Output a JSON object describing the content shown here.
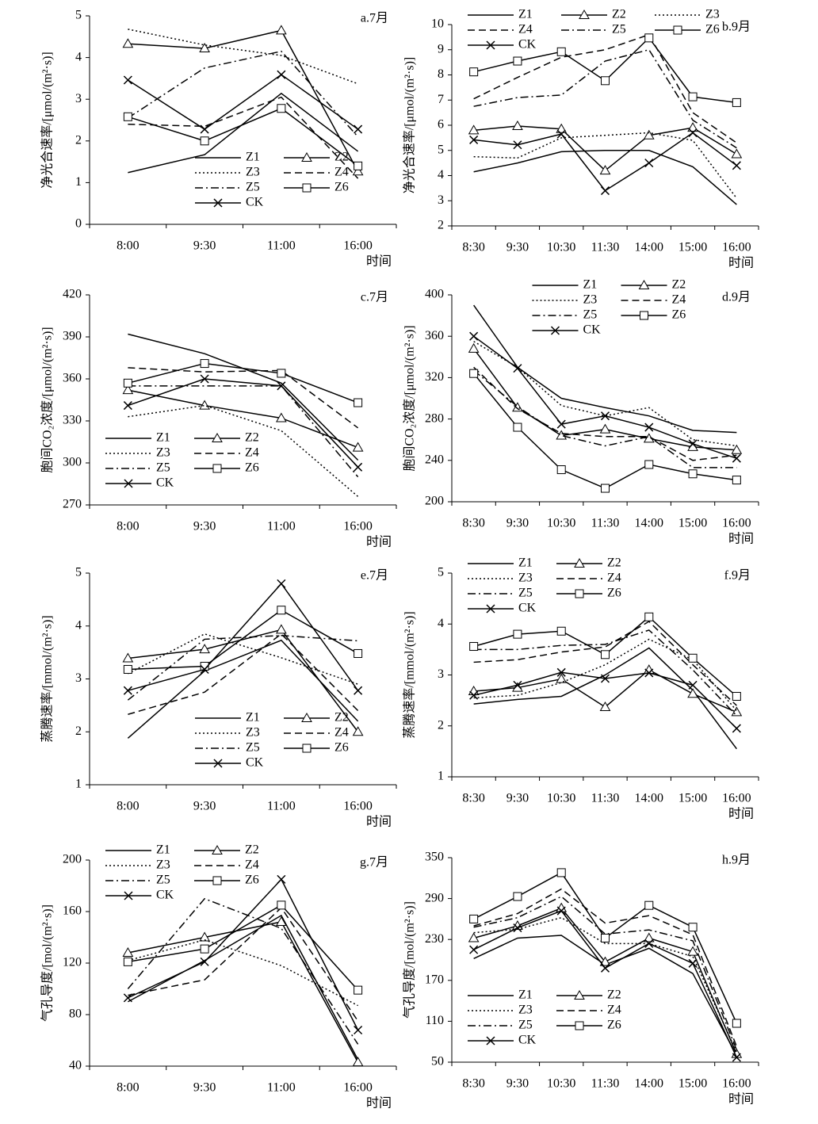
{
  "chart_data": [
    {
      "type": "line",
      "title": "a.7月",
      "ylabel": "净光合速率/[μmol/(m²·s)]",
      "xlabel": "时间",
      "categories": [
        "8:00",
        "9:30",
        "11:00",
        "16:00"
      ],
      "ylim": [
        0,
        5
      ],
      "yticks": [
        0,
        1,
        2,
        3,
        4,
        5
      ],
      "legend": "lower right",
      "legend_columns": 2,
      "series": [
        {
          "name": "Z1",
          "color": "#000",
          "dash": "solid",
          "marker": "none",
          "values": [
            1.24,
            1.67,
            3.14,
            1.75
          ]
        },
        {
          "name": "Z2",
          "color": "#000",
          "dash": "solid",
          "marker": "triangle",
          "values": [
            4.33,
            4.22,
            4.65,
            1.27
          ]
        },
        {
          "name": "Z3",
          "color": "#000",
          "dash": "dotted",
          "marker": "none",
          "values": [
            4.68,
            4.3,
            4.05,
            3.37
          ]
        },
        {
          "name": "Z4",
          "color": "#000",
          "dash": "dashed",
          "marker": "none",
          "values": [
            2.4,
            2.35,
            3.05,
            1.1
          ]
        },
        {
          "name": "Z5",
          "color": "#000",
          "dash": "dashdot",
          "marker": "none",
          "values": [
            2.55,
            3.75,
            4.15,
            2.1
          ]
        },
        {
          "name": "Z6",
          "color": "#000",
          "dash": "solid",
          "marker": "square",
          "values": [
            2.58,
            2.0,
            2.78,
            1.4
          ]
        },
        {
          "name": "CK",
          "color": "#000",
          "dash": "solid",
          "marker": "x",
          "values": [
            3.46,
            2.28,
            3.59,
            2.28
          ]
        }
      ]
    },
    {
      "type": "line",
      "title": "b.9月",
      "ylabel": "净光合速率/[μmol/(m²·s)]",
      "xlabel": "时间",
      "categories": [
        "8:30",
        "9:30",
        "10:30",
        "11:30",
        "14:00",
        "15:00",
        "16:00"
      ],
      "ylim": [
        2,
        10
      ],
      "yticks": [
        2,
        3,
        4,
        5,
        6,
        7,
        8,
        9,
        10
      ],
      "legend": "upper left",
      "legend_columns": 3,
      "series": [
        {
          "name": "Z1",
          "color": "#000",
          "dash": "solid",
          "marker": "none",
          "values": [
            4.15,
            4.5,
            4.95,
            5.0,
            5.0,
            4.35,
            2.85
          ]
        },
        {
          "name": "Z2",
          "color": "#000",
          "dash": "solid",
          "marker": "triangle",
          "values": [
            5.8,
            5.97,
            5.85,
            4.2,
            5.6,
            5.9,
            4.85
          ]
        },
        {
          "name": "Z3",
          "color": "#000",
          "dash": "dotted",
          "marker": "none",
          "values": [
            4.75,
            4.7,
            5.5,
            5.6,
            5.7,
            5.4,
            3.1
          ]
        },
        {
          "name": "Z4",
          "color": "#000",
          "dash": "dashed",
          "marker": "none",
          "values": [
            7.05,
            7.9,
            8.7,
            9.0,
            9.6,
            6.5,
            5.3
          ]
        },
        {
          "name": "Z5",
          "color": "#000",
          "dash": "dashdot",
          "marker": "none",
          "values": [
            6.75,
            7.1,
            7.2,
            8.55,
            9.0,
            6.2,
            5.1
          ]
        },
        {
          "name": "Z6",
          "color": "#000",
          "dash": "solid",
          "marker": "square",
          "values": [
            8.12,
            8.55,
            8.92,
            7.77,
            9.47,
            7.13,
            6.9
          ]
        },
        {
          "name": "CK",
          "color": "#000",
          "dash": "solid",
          "marker": "x",
          "values": [
            5.42,
            5.22,
            5.65,
            3.4,
            4.5,
            5.7,
            4.4
          ]
        }
      ]
    },
    {
      "type": "line",
      "title": "c.7月",
      "ylabel": "胞间CO₂浓度/[μmol/(m²·s)]",
      "xlabel": "时间",
      "categories": [
        "8:00",
        "9:30",
        "11:00",
        "16:00"
      ],
      "ylim": [
        270,
        420
      ],
      "yticks": [
        270,
        300,
        330,
        360,
        390,
        420
      ],
      "legend": "lower left",
      "legend_columns": 2,
      "series": [
        {
          "name": "Z1",
          "color": "#000",
          "dash": "solid",
          "marker": "none",
          "values": [
            392,
            378,
            357,
            302
          ]
        },
        {
          "name": "Z2",
          "color": "#000",
          "dash": "solid",
          "marker": "triangle",
          "values": [
            352,
            341,
            332,
            311
          ]
        },
        {
          "name": "Z3",
          "color": "#000",
          "dash": "dotted",
          "marker": "none",
          "values": [
            333,
            341,
            323,
            276
          ]
        },
        {
          "name": "Z4",
          "color": "#000",
          "dash": "dashed",
          "marker": "none",
          "values": [
            368,
            365,
            366,
            325
          ]
        },
        {
          "name": "Z5",
          "color": "#000",
          "dash": "dashdot",
          "marker": "none",
          "values": [
            355,
            355,
            355,
            290
          ]
        },
        {
          "name": "Z6",
          "color": "#000",
          "dash": "solid",
          "marker": "square",
          "values": [
            357,
            371,
            364,
            343
          ]
        },
        {
          "name": "CK",
          "color": "#000",
          "dash": "solid",
          "marker": "x",
          "values": [
            341,
            360,
            355,
            297
          ]
        }
      ]
    },
    {
      "type": "line",
      "title": "d.9月",
      "ylabel": "胞间CO₂浓度/[μmol/(m²·s)]",
      "xlabel": "时间",
      "categories": [
        "8:30",
        "9:30",
        "10:30",
        "11:30",
        "14:00",
        "15:00",
        "16:00"
      ],
      "ylim": [
        200,
        400
      ],
      "yticks": [
        200,
        240,
        280,
        320,
        360,
        400
      ],
      "legend": "upper center",
      "legend_columns": 2,
      "series": [
        {
          "name": "Z1",
          "color": "#000",
          "dash": "solid",
          "marker": "none",
          "values": [
            390,
            330,
            300,
            291,
            283,
            269,
            267
          ]
        },
        {
          "name": "Z2",
          "color": "#000",
          "dash": "solid",
          "marker": "triangle",
          "values": [
            348,
            291,
            264,
            270,
            261,
            253,
            250
          ]
        },
        {
          "name": "Z3",
          "color": "#000",
          "dash": "dotted",
          "marker": "none",
          "values": [
            355,
            330,
            293,
            283,
            291,
            260,
            254
          ]
        },
        {
          "name": "Z4",
          "color": "#000",
          "dash": "dashed",
          "marker": "none",
          "values": [
            330,
            290,
            266,
            263,
            263,
            240,
            245
          ]
        },
        {
          "name": "Z5",
          "color": "#000",
          "dash": "dashdot",
          "marker": "none",
          "values": [
            327,
            292,
            264,
            254,
            263,
            233,
            233
          ]
        },
        {
          "name": "Z6",
          "color": "#000",
          "dash": "solid",
          "marker": "square",
          "values": [
            324,
            272,
            231,
            213,
            236,
            227,
            221
          ]
        },
        {
          "name": "CK",
          "color": "#000",
          "dash": "solid",
          "marker": "x",
          "values": [
            360,
            329,
            275,
            283,
            272,
            256,
            242
          ]
        }
      ]
    },
    {
      "type": "line",
      "title": "e.7月",
      "ylabel": "蒸腾速率/[mmol/(m²·s)]",
      "xlabel": "时间",
      "categories": [
        "8:00",
        "9:30",
        "11:00",
        "16:00"
      ],
      "ylim": [
        1,
        5
      ],
      "yticks": [
        1,
        2,
        3,
        4,
        5
      ],
      "legend": "lower right",
      "legend_columns": 2,
      "series": [
        {
          "name": "Z1",
          "color": "#000",
          "dash": "solid",
          "marker": "none",
          "values": [
            1.88,
            3.15,
            3.73,
            2.2
          ]
        },
        {
          "name": "Z2",
          "color": "#000",
          "dash": "solid",
          "marker": "triangle",
          "values": [
            3.39,
            3.56,
            3.93,
            2.0
          ]
        },
        {
          "name": "Z3",
          "color": "#000",
          "dash": "dotted",
          "marker": "none",
          "values": [
            3.1,
            3.85,
            3.4,
            2.9
          ]
        },
        {
          "name": "Z4",
          "color": "#000",
          "dash": "dashed",
          "marker": "none",
          "values": [
            2.33,
            2.75,
            3.85,
            2.4
          ]
        },
        {
          "name": "Z5",
          "color": "#000",
          "dash": "dashdot",
          "marker": "none",
          "values": [
            2.6,
            3.75,
            3.82,
            3.72
          ]
        },
        {
          "name": "Z6",
          "color": "#000",
          "dash": "solid",
          "marker": "square",
          "values": [
            3.18,
            3.24,
            4.3,
            3.48
          ]
        },
        {
          "name": "CK",
          "color": "#000",
          "dash": "solid",
          "marker": "x",
          "values": [
            2.78,
            3.18,
            4.8,
            2.78
          ]
        }
      ]
    },
    {
      "type": "line",
      "title": "f.9月",
      "ylabel": "蒸腾速率/[mmol/(m²·s)]",
      "xlabel": "时间",
      "categories": [
        "8:30",
        "9:30",
        "10:30",
        "11:30",
        "14:00",
        "15:00",
        "16:00"
      ],
      "ylim": [
        1,
        5
      ],
      "yticks": [
        1,
        2,
        3,
        4,
        5
      ],
      "legend": "upper left",
      "legend_columns": 2,
      "series": [
        {
          "name": "Z1",
          "color": "#000",
          "dash": "solid",
          "marker": "none",
          "values": [
            2.43,
            2.52,
            2.58,
            3.0,
            3.53,
            2.7,
            1.55
          ]
        },
        {
          "name": "Z2",
          "color": "#000",
          "dash": "solid",
          "marker": "triangle",
          "values": [
            2.68,
            2.75,
            2.92,
            2.37,
            3.1,
            2.63,
            2.27
          ]
        },
        {
          "name": "Z3",
          "color": "#000",
          "dash": "dotted",
          "marker": "none",
          "values": [
            2.55,
            2.6,
            2.85,
            3.2,
            3.7,
            3.3,
            2.3
          ]
        },
        {
          "name": "Z4",
          "color": "#000",
          "dash": "dashed",
          "marker": "none",
          "values": [
            3.25,
            3.3,
            3.45,
            3.55,
            4.05,
            3.2,
            2.4
          ]
        },
        {
          "name": "Z5",
          "color": "#000",
          "dash": "dashdot",
          "marker": "none",
          "values": [
            3.5,
            3.5,
            3.58,
            3.6,
            3.88,
            3.1,
            2.2
          ]
        },
        {
          "name": "Z6",
          "color": "#000",
          "dash": "solid",
          "marker": "square",
          "values": [
            3.56,
            3.8,
            3.86,
            3.4,
            4.14,
            3.33,
            2.58
          ]
        },
        {
          "name": "CK",
          "color": "#000",
          "dash": "solid",
          "marker": "x",
          "values": [
            2.6,
            2.8,
            3.05,
            2.93,
            3.04,
            2.8,
            1.95
          ]
        }
      ]
    },
    {
      "type": "line",
      "title": "g.7月",
      "ylabel": "气孔导度/[mol/(m²·s)]",
      "xlabel": "时间",
      "categories": [
        "8:00",
        "9:30",
        "11:00",
        "16:00"
      ],
      "ylim": [
        40,
        200
      ],
      "yticks": [
        40,
        80,
        120,
        160,
        200
      ],
      "legend": "upper left",
      "legend_columns": 2,
      "series": [
        {
          "name": "Z1",
          "color": "#000",
          "dash": "solid",
          "marker": "none",
          "values": [
            90,
            122,
            157,
            45
          ]
        },
        {
          "name": "Z2",
          "color": "#000",
          "dash": "solid",
          "marker": "triangle",
          "values": [
            128,
            140,
            152,
            43
          ]
        },
        {
          "name": "Z3",
          "color": "#000",
          "dash": "dotted",
          "marker": "none",
          "values": [
            122,
            138,
            118,
            87
          ]
        },
        {
          "name": "Z4",
          "color": "#000",
          "dash": "dashed",
          "marker": "none",
          "values": [
            95,
            107,
            163,
            75
          ]
        },
        {
          "name": "Z5",
          "color": "#000",
          "dash": "dashdot",
          "marker": "none",
          "values": [
            100,
            170,
            147,
            57
          ]
        },
        {
          "name": "Z6",
          "color": "#000",
          "dash": "solid",
          "marker": "square",
          "values": [
            121,
            131,
            165,
            99
          ]
        },
        {
          "name": "CK",
          "color": "#000",
          "dash": "solid",
          "marker": "x",
          "values": [
            93,
            121,
            185,
            68
          ]
        }
      ]
    },
    {
      "type": "line",
      "title": "h.9月",
      "ylabel": "气孔导度/[mol/(m²·s)]",
      "xlabel": "时间",
      "categories": [
        "8:30",
        "9:30",
        "10:30",
        "11:30",
        "14:00",
        "15:00",
        "16:00"
      ],
      "ylim": [
        50,
        350
      ],
      "yticks": [
        50,
        110,
        170,
        230,
        290,
        350
      ],
      "legend": "lower left",
      "legend_columns": 2,
      "series": [
        {
          "name": "Z1",
          "color": "#000",
          "dash": "solid",
          "marker": "none",
          "values": [
            202,
            232,
            236,
            193,
            217,
            180,
            60
          ]
        },
        {
          "name": "Z2",
          "color": "#000",
          "dash": "solid",
          "marker": "triangle",
          "values": [
            232,
            250,
            276,
            197,
            232,
            212,
            62
          ]
        },
        {
          "name": "Z3",
          "color": "#000",
          "dash": "dotted",
          "marker": "none",
          "values": [
            240,
            245,
            262,
            224,
            224,
            205,
            65
          ]
        },
        {
          "name": "Z4",
          "color": "#000",
          "dash": "dashed",
          "marker": "none",
          "values": [
            250,
            268,
            304,
            254,
            265,
            237,
            73
          ]
        },
        {
          "name": "Z5",
          "color": "#000",
          "dash": "dashdot",
          "marker": "none",
          "values": [
            248,
            262,
            293,
            238,
            244,
            228,
            68
          ]
        },
        {
          "name": "Z6",
          "color": "#000",
          "dash": "solid",
          "marker": "square",
          "values": [
            260,
            293,
            328,
            232,
            280,
            248,
            107
          ]
        },
        {
          "name": "CK",
          "color": "#000",
          "dash": "solid",
          "marker": "x",
          "values": [
            215,
            247,
            272,
            188,
            224,
            195,
            57
          ]
        }
      ]
    }
  ]
}
